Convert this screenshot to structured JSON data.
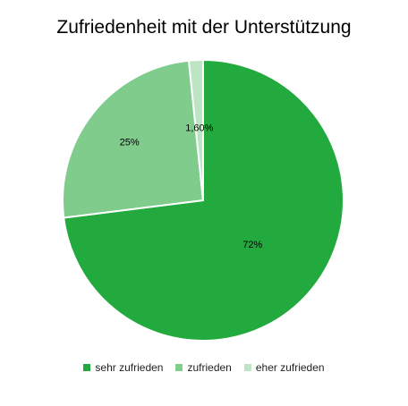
{
  "chart_data": {
    "type": "pie",
    "title": "Zufriedenheit mit der Unterstützung",
    "categories": [
      "sehr zufrieden",
      "zufrieden",
      "eher zufrieden"
    ],
    "values": [
      72,
      25,
      1.6
    ],
    "data_labels": [
      "72%",
      "25%",
      "1,60%"
    ],
    "colors": [
      "#22AA3E",
      "#7FCC8D",
      "#BDE5C4"
    ],
    "legend_position": "bottom"
  }
}
